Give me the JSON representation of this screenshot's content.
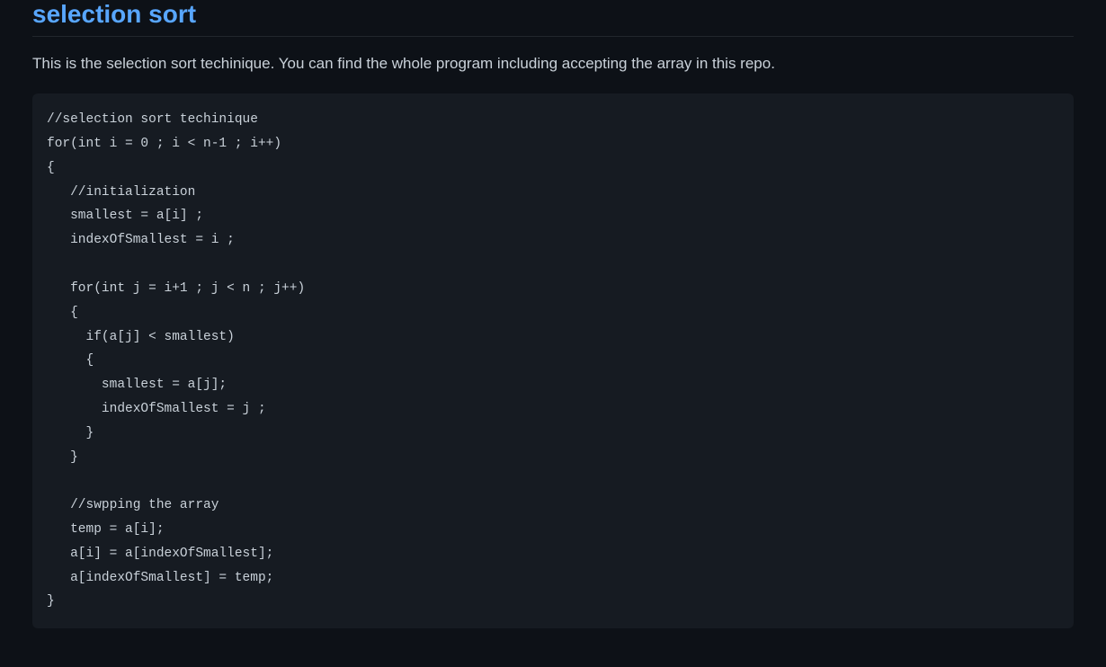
{
  "page": {
    "background_color": "#0d1117",
    "text_color": "#c9d1d9",
    "link_color": "#58a6ff",
    "border_color": "#21262d",
    "code_background": "#161b22"
  },
  "heading": {
    "text": "selection sort",
    "fontsize": 28,
    "fontweight": 600,
    "color": "#58a6ff"
  },
  "description": {
    "text": "This is the selection sort techinique. You can find the whole program including accepting the array in this repo.",
    "fontsize": 17,
    "color": "#c9d1d9"
  },
  "code": {
    "font_family": "monospace",
    "fontsize": 14.5,
    "line_height": 1.85,
    "color": "#c9d1d9",
    "content": "//selection sort techinique\nfor(int i = 0 ; i < n-1 ; i++)\n{\n   //initialization\n   smallest = a[i] ;\n   indexOfSmallest = i ;\n\n   for(int j = i+1 ; j < n ; j++)\n   {\n     if(a[j] < smallest)\n     {\n       smallest = a[j];\n       indexOfSmallest = j ;\n     }\n   }\n\n   //swpping the array\n   temp = a[i];\n   a[i] = a[indexOfSmallest];\n   a[indexOfSmallest] = temp;\n}"
  }
}
